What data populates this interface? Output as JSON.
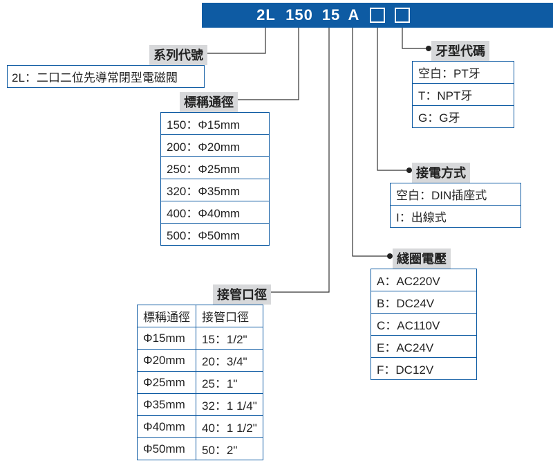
{
  "colors": {
    "header_bg": "#0e5ba3",
    "header_text": "#ffffff",
    "label_bg": "#d7d8da",
    "border": "#0e5ba3",
    "text": "#222222",
    "background": "#ffffff",
    "line": "#333333"
  },
  "header": {
    "segments": [
      "2L",
      "150",
      "15",
      "A"
    ],
    "empty_boxes": 2
  },
  "groups": {
    "series": {
      "label": "系列代號",
      "value": "2L：二口二位先導常閉型電磁閥"
    },
    "nominal_dia": {
      "label": "標稱通徑",
      "rows": [
        "150：Φ15mm",
        "200：Φ20mm",
        "250：Φ25mm",
        "320：Φ35mm",
        "400：Φ40mm",
        "500：Φ50mm"
      ]
    },
    "port_size": {
      "label": "接管口徑",
      "headers": [
        "標稱通徑",
        "接管口徑"
      ],
      "rows": [
        [
          "Φ15mm",
          "15：1/2\""
        ],
        [
          "Φ20mm",
          "20：3/4\""
        ],
        [
          "Φ25mm",
          "25：1\""
        ],
        [
          "Φ35mm",
          "32：1 1/4\""
        ],
        [
          "Φ40mm",
          "40：1 1/2\""
        ],
        [
          "Φ50mm",
          "50：2\""
        ]
      ]
    },
    "coil_voltage": {
      "label": "綫圈電壓",
      "rows": [
        "A：AC220V",
        "B：DC24V",
        "C：AC110V",
        "E：AC24V",
        "F：DC12V"
      ]
    },
    "wiring": {
      "label": "接電方式",
      "rows": [
        "空白：DIN插座式",
        "I：出線式"
      ]
    },
    "thread": {
      "label": "牙型代碼",
      "rows": [
        "空白：PT牙",
        "T：NPT牙",
        "G：G牙"
      ]
    }
  },
  "leaders": [
    {
      "from": [
        384,
        40
      ],
      "elbow": [
        384,
        77
      ],
      "to": [
        296,
        77
      ],
      "dot_at": "to"
    },
    {
      "from": [
        432,
        40
      ],
      "elbow": [
        432,
        144
      ],
      "to": [
        340,
        144
      ],
      "dot_at": "to"
    },
    {
      "from": [
        476,
        40
      ],
      "elbow": [
        476,
        422
      ],
      "to": [
        388,
        422
      ],
      "dot_at": "to"
    },
    {
      "from": [
        510,
        40
      ],
      "elbow": [
        510,
        370
      ],
      "to": [
        564,
        370
      ],
      "dot_at": "to"
    },
    {
      "from": [
        546,
        40
      ],
      "elbow": [
        546,
        246
      ],
      "to": [
        592,
        246
      ],
      "dot_at": "to"
    },
    {
      "from": [
        582,
        40
      ],
      "elbow": [
        582,
        70
      ],
      "to": [
        620,
        70
      ],
      "dot_at": "to"
    }
  ]
}
